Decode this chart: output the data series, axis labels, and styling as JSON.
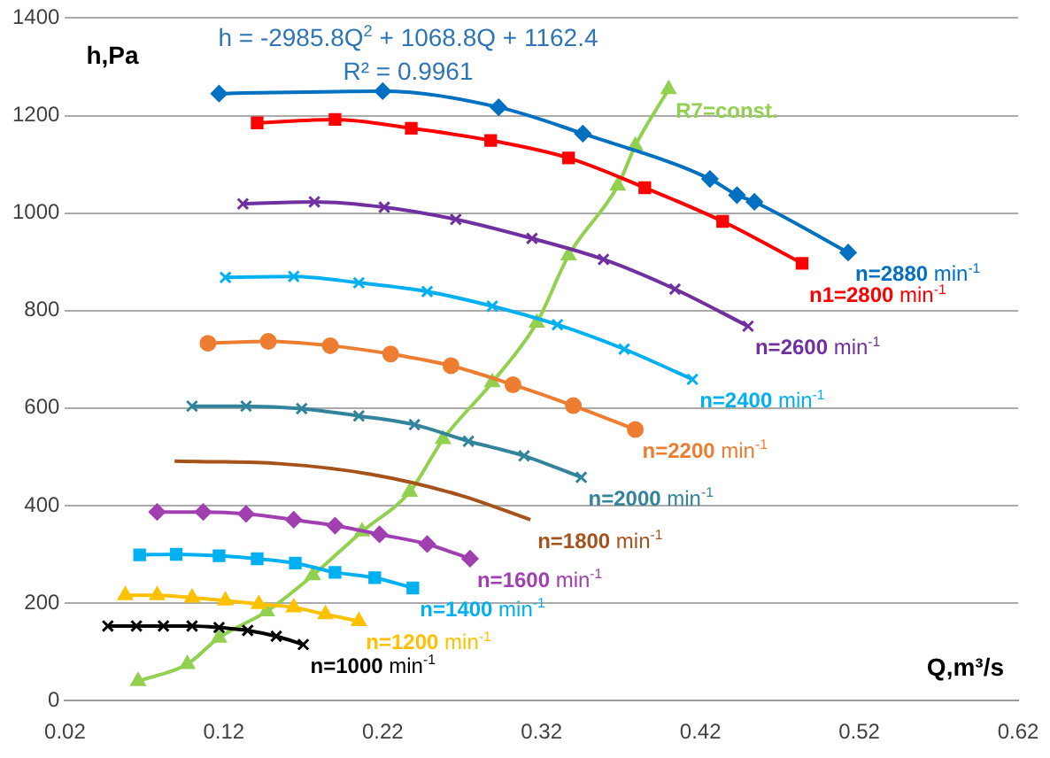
{
  "chart_data": {
    "type": "line",
    "xlabel": "Q,m³/s",
    "ylabel": "h,Pa",
    "annotations": [
      "h = -2985.8Q$^{2}$ + 1068.8Q + 1162.4",
      "R² = 0.9961"
    ],
    "xlim": [
      0.02,
      0.62
    ],
    "xticks": [
      0.02,
      0.12,
      0.22,
      0.32,
      0.42,
      0.52,
      0.62
    ],
    "ylim": [
      0,
      1400
    ],
    "yticks": [
      0,
      200,
      400,
      600,
      800,
      1000,
      1200,
      1400
    ],
    "grid": "y",
    "legend": false,
    "series": [
      {
        "name": "n=2880 min$^{-1}$",
        "color": "#0070c0",
        "marker": "diamond",
        "x": [
          0.117,
          0.22,
          0.293,
          0.346,
          0.426,
          0.443,
          0.454,
          0.513
        ],
        "values": [
          1245,
          1250,
          1217,
          1163,
          1070,
          1037,
          1023,
          919
        ]
      },
      {
        "name": "n1=2800 min$^{-1}$",
        "color": "#ff0000",
        "marker": "square",
        "x": [
          0.141,
          0.19,
          0.238,
          0.288,
          0.337,
          0.385,
          0.434,
          0.484
        ],
        "values": [
          1185,
          1192,
          1174,
          1149,
          1113,
          1052,
          983,
          897
        ]
      },
      {
        "name": "n=2600 min$^{-1}$",
        "color": "#7030a0",
        "marker": "cross",
        "x": [
          0.132,
          0.177,
          0.221,
          0.266,
          0.314,
          0.359,
          0.404,
          0.45
        ],
        "values": [
          1019,
          1023,
          1012,
          987,
          948,
          905,
          844,
          768
        ]
      },
      {
        "name": "n=2400 min$^{-1}$",
        "color": "#00b0f0",
        "marker": "cross",
        "x": [
          0.121,
          0.164,
          0.205,
          0.248,
          0.289,
          0.33,
          0.372,
          0.415
        ],
        "values": [
          868,
          870,
          857,
          839,
          809,
          771,
          721,
          659
        ]
      },
      {
        "name": "n=2200 min$^{-1}$",
        "color": "#ed7d31",
        "marker": "circle",
        "x": [
          0.11,
          0.148,
          0.187,
          0.225,
          0.263,
          0.302,
          0.34,
          0.379
        ],
        "values": [
          733,
          737,
          728,
          711,
          687,
          648,
          605,
          556
        ]
      },
      {
        "name": "n=2000 min$^{-1}$",
        "color": "#31849b",
        "marker": "cross",
        "x": [
          0.1,
          0.134,
          0.169,
          0.205,
          0.24,
          0.274,
          0.309,
          0.345
        ],
        "values": [
          604,
          604,
          599,
          584,
          566,
          532,
          502,
          458
        ]
      },
      {
        "name": "n=1800 min$^{-1}$",
        "color": "#a5521b",
        "marker": "none",
        "x": [
          0.089,
          0.155,
          0.213,
          0.268,
          0.313
        ],
        "values": [
          491,
          486,
          464,
          422,
          371
        ]
      },
      {
        "name": "n=1600 min$^{-1}$",
        "color": "#a040b0",
        "marker": "diamond",
        "x": [
          0.078,
          0.107,
          0.134,
          0.164,
          0.19,
          0.218,
          0.248,
          0.275
        ],
        "values": [
          387,
          387,
          383,
          371,
          359,
          341,
          321,
          291
        ]
      },
      {
        "name": "n=1400 min$^{-1}$",
        "color": "#00b0f0",
        "marker": "square",
        "x": [
          0.067,
          0.09,
          0.117,
          0.141,
          0.165,
          0.19,
          0.215,
          0.239
        ],
        "values": [
          299,
          300,
          297,
          291,
          282,
          263,
          252,
          231
        ]
      },
      {
        "name": "n=1200 min$^{-1}$",
        "color": "#ffc000",
        "marker": "triangle",
        "x": [
          0.058,
          0.078,
          0.1,
          0.121,
          0.142,
          0.164,
          0.184,
          0.205
        ],
        "values": [
          216,
          216,
          211,
          205,
          198,
          191,
          177,
          163
        ]
      },
      {
        "name": "n=1000 min$^{-1}$",
        "color": "#000000",
        "marker": "cross",
        "x": [
          0.047,
          0.065,
          0.082,
          0.1,
          0.117,
          0.135,
          0.153,
          0.17
        ],
        "values": [
          153,
          153,
          153,
          153,
          150,
          144,
          132,
          115
        ]
      },
      {
        "name": "R7=const.",
        "color": "#92d050",
        "marker": "triangle",
        "x": [
          0.066,
          0.097,
          0.117,
          0.147,
          0.176,
          0.207,
          0.237,
          0.258,
          0.289,
          0.317,
          0.337,
          0.368,
          0.379,
          0.4
        ],
        "values": [
          40,
          75,
          129,
          183,
          257,
          347,
          428,
          536,
          653,
          775,
          913,
          1056,
          1138,
          1254
        ]
      }
    ]
  }
}
